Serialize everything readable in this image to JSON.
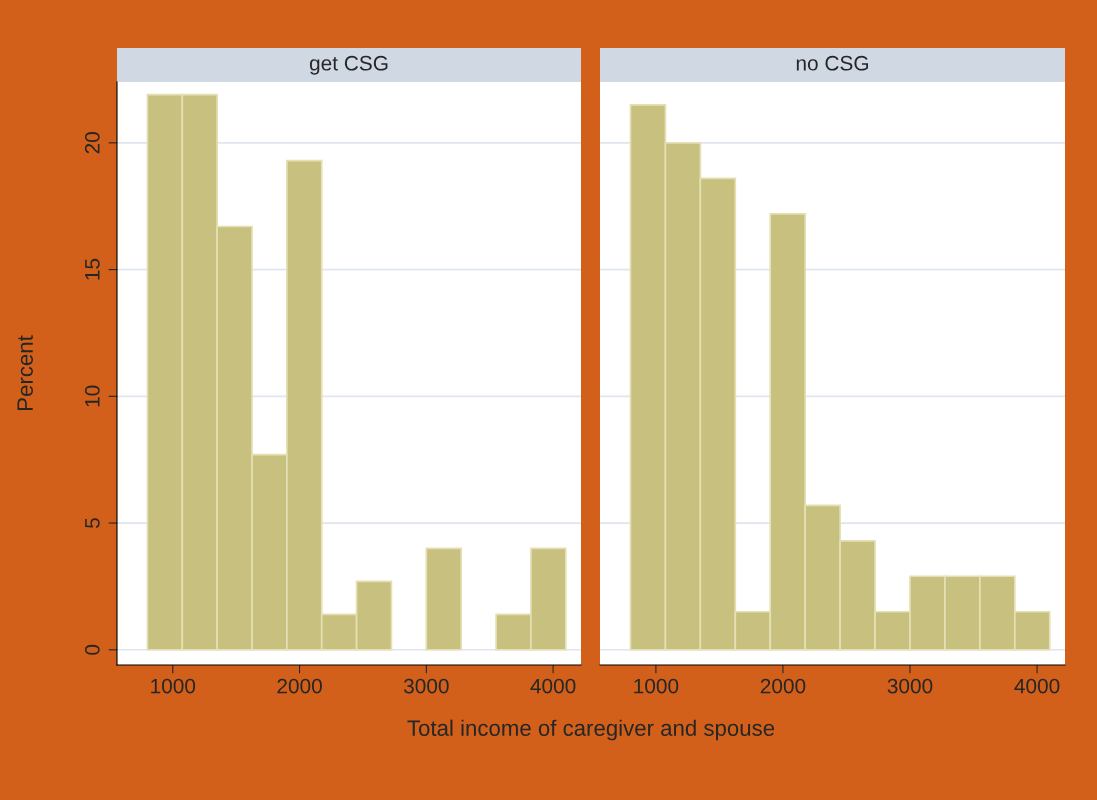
{
  "chart_data": [
    {
      "type": "histogram",
      "title": "get CSG",
      "xlabel": "Total income of caregiver and spouse",
      "ylabel": "Percent",
      "bins": [
        800,
        1075,
        1350,
        1625,
        1900,
        2175,
        2450,
        2725,
        3000,
        3275,
        3550,
        3825,
        4100
      ],
      "values": [
        21.9,
        21.9,
        16.7,
        7.7,
        19.3,
        1.4,
        2.7,
        0,
        4.0,
        0,
        1.4,
        4.0
      ],
      "color": "#c8c07e",
      "xlim": [
        560,
        4220
      ],
      "xticks": [
        1000,
        2000,
        3000,
        4000
      ],
      "ylim": [
        -0.6,
        22.4
      ],
      "yticks": [
        0,
        5,
        10,
        15,
        20
      ],
      "grid": "y"
    },
    {
      "type": "histogram",
      "title": "no CSG",
      "bins": [
        800,
        1075,
        1350,
        1625,
        1900,
        2175,
        2450,
        2725,
        3000,
        3275,
        3550,
        3825,
        4100
      ],
      "values": [
        21.5,
        20.0,
        18.6,
        1.5,
        17.2,
        5.7,
        4.3,
        1.5,
        2.9,
        2.9,
        2.9,
        1.5
      ],
      "color": "#c8c07e",
      "xlim": [
        560,
        4220
      ],
      "xticks": [
        1000,
        2000,
        3000,
        4000
      ],
      "ylim": [
        -0.6,
        22.4
      ],
      "yticks": [
        0,
        5,
        10,
        15,
        20
      ],
      "grid": "y",
      "tick_labels": "x"
    }
  ]
}
